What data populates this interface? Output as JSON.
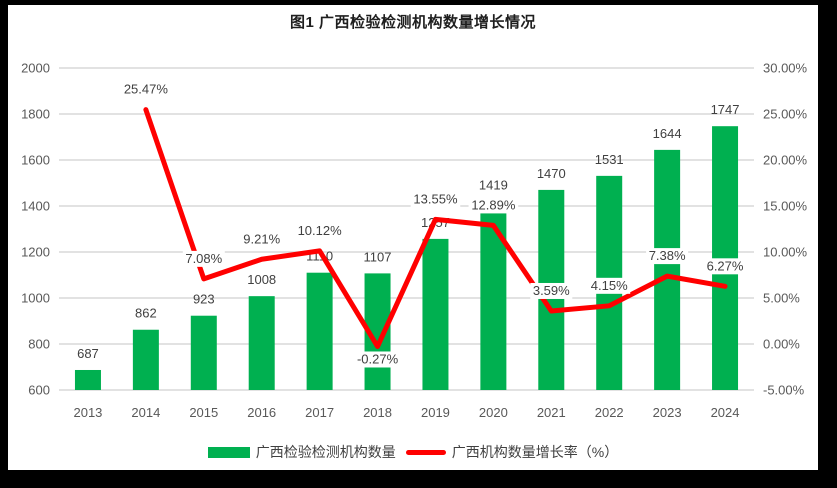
{
  "title": "图1 广西检验检测机构数量增长情况",
  "colors": {
    "bar": "#00B050",
    "line": "#FF0000",
    "grid": "#D9D9D9",
    "axis_text": "#595959",
    "label_text": "#404040",
    "background": "#FFFFFF",
    "frame": "#000000"
  },
  "legend": [
    {
      "swatch": "bar",
      "label": "广西检验检测机构数量"
    },
    {
      "swatch": "line",
      "label": "广西机构数量增长率（%）"
    }
  ],
  "chart_data": {
    "type": "bar+line",
    "title": "图1 广西检验检测机构数量增长情况",
    "categories": [
      "2013",
      "2014",
      "2015",
      "2016",
      "2017",
      "2018",
      "2019",
      "2020",
      "2021",
      "2022",
      "2023",
      "2024"
    ],
    "series": [
      {
        "name": "广西检验检测机构数量",
        "type": "bar",
        "axis": "left",
        "values": [
          687,
          862,
          923,
          1008,
          1110,
          1107,
          1257,
          1419,
          1470,
          1531,
          1644,
          1747
        ],
        "labels": [
          "687",
          "862",
          "923",
          "1008",
          "1110",
          "1107",
          "1257",
          "1419",
          "1470",
          "1531",
          "1644",
          "1747"
        ]
      },
      {
        "name": "广西机构数量增长率（%）",
        "type": "line",
        "axis": "right",
        "values": [
          null,
          25.47,
          7.08,
          9.21,
          10.12,
          -0.27,
          13.55,
          12.89,
          3.59,
          4.15,
          7.38,
          6.27
        ],
        "labels": [
          null,
          "25.47%",
          "7.08%",
          "9.21%",
          "10.12%",
          "-0.27%",
          "13.55%",
          "12.89%",
          "3.59%",
          "4.15%",
          "7.38%",
          "6.27%"
        ],
        "label_placement": [
          null,
          "above",
          "above",
          "above",
          "above",
          "below",
          "above",
          "above",
          "above",
          "above",
          "above",
          "above"
        ]
      }
    ],
    "left_axis": {
      "min": 600,
      "max": 2000,
      "step": 200,
      "tick_labels": [
        "600",
        "800",
        "1000",
        "1200",
        "1400",
        "1600",
        "1800",
        "2000"
      ]
    },
    "right_axis": {
      "min": -5,
      "max": 30,
      "step": 5,
      "tick_labels": [
        "-5.00%",
        "0.00%",
        "5.00%",
        "10.00%",
        "15.00%",
        "20.00%",
        "25.00%",
        "30.00%"
      ]
    },
    "grid": true,
    "legend_position": "bottom"
  }
}
